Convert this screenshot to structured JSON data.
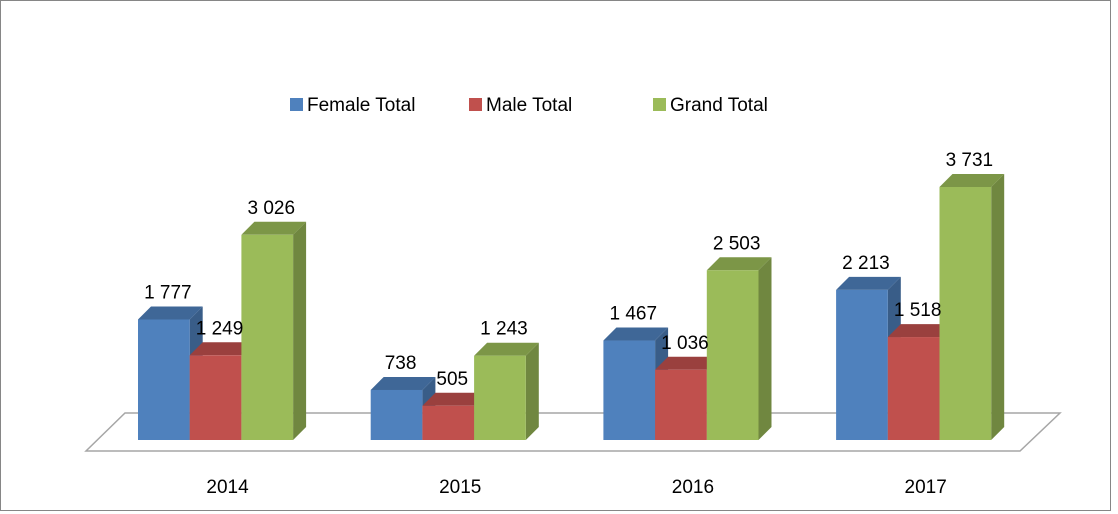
{
  "chart_data": {
    "type": "bar3d",
    "categories": [
      "2014",
      "2015",
      "2016",
      "2017"
    ],
    "series": [
      {
        "name": "Female Total",
        "color": "#4f81bd",
        "values": [
          1777,
          738,
          1467,
          2213
        ],
        "value_labels": [
          "1 777",
          "738",
          "1 467",
          "2 213"
        ]
      },
      {
        "name": "Male Total",
        "color": "#c0504d",
        "values": [
          1249,
          505,
          1036,
          1518
        ],
        "value_labels": [
          "1 249",
          "505",
          "1 036",
          "1 518"
        ]
      },
      {
        "name": "Grand Total",
        "color": "#9bbb59",
        "values": [
          3026,
          1243,
          2503,
          3731
        ],
        "value_labels": [
          "3 026",
          "1 243",
          "2 503",
          "3 731"
        ]
      }
    ],
    "legend": "top"
  }
}
